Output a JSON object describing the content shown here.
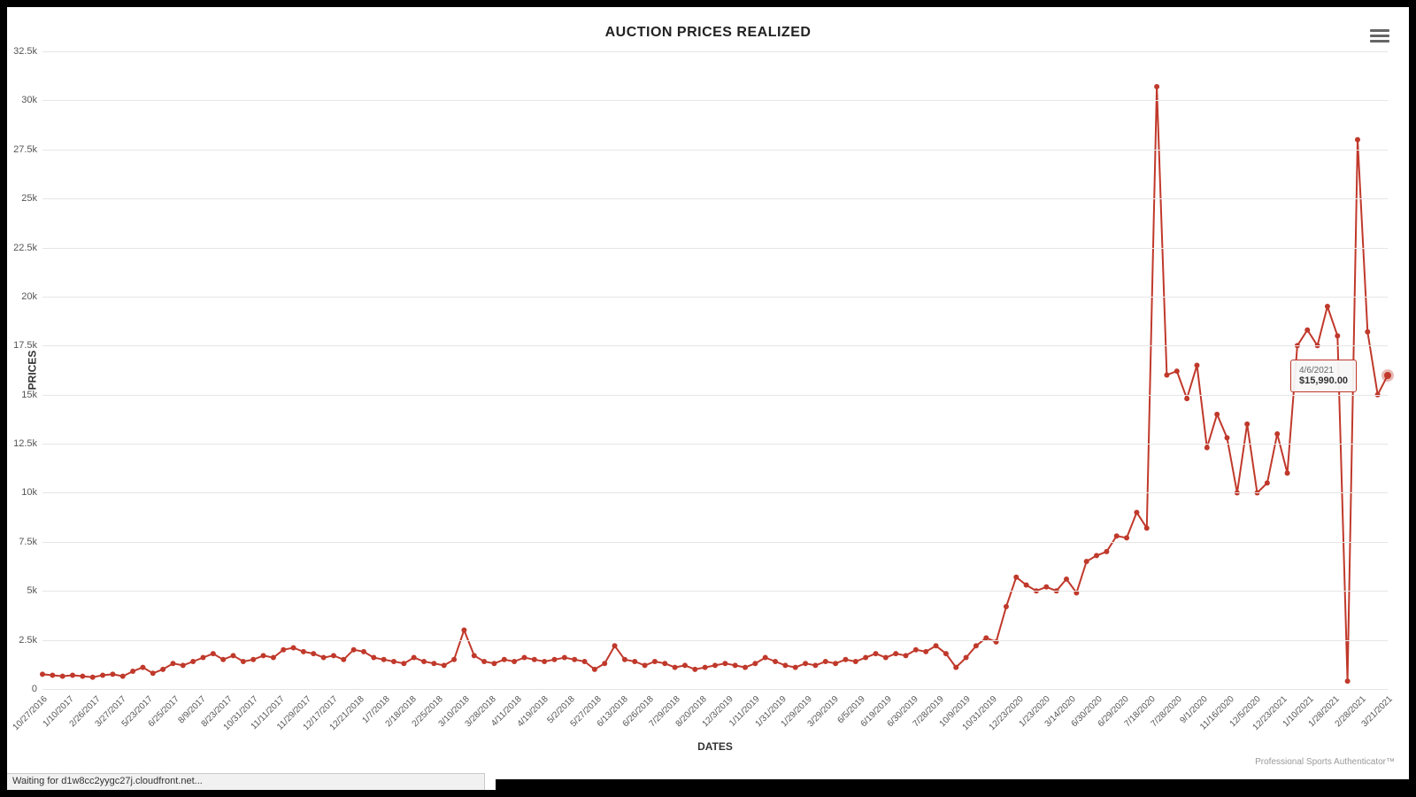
{
  "chart": {
    "type": "line",
    "title": "AUCTION PRICES REALIZED",
    "x_axis_title": "DATES",
    "y_axis_title": "PRICES",
    "line_color": "#c0392b",
    "marker_color": "#c0392b",
    "line_width": 2,
    "marker_radius": 3,
    "background_color": "#ffffff",
    "grid_color": "#e6e6e6",
    "title_fontsize": 16,
    "axis_title_fontsize": 12,
    "tick_fontsize": 11,
    "ylim": [
      0,
      32500
    ],
    "ytick_step": 2500,
    "yticks": [
      "0",
      "2.5k",
      "5k",
      "7.5k",
      "10k",
      "12.5k",
      "15k",
      "17.5k",
      "20k",
      "22.5k",
      "25k",
      "27.5k",
      "30k",
      "32.5k"
    ],
    "xticks": [
      "10/27/2016",
      "1/10/2017",
      "2/26/2017",
      "3/27/2017",
      "5/23/2017",
      "6/25/2017",
      "8/9/2017",
      "8/23/2017",
      "10/31/2017",
      "11/11/2017",
      "11/29/2017",
      "12/17/2017",
      "12/21/2018",
      "1/7/2018",
      "2/18/2018",
      "2/25/2018",
      "3/10/2018",
      "3/28/2018",
      "4/11/2018",
      "4/19/2018",
      "5/2/2018",
      "5/27/2018",
      "6/13/2018",
      "6/26/2018",
      "7/29/2018",
      "8/20/2018",
      "12/3/2019",
      "1/11/2019",
      "1/31/2019",
      "1/29/2019",
      "3/29/2019",
      "6/5/2019",
      "6/19/2019",
      "6/30/2019",
      "7/28/2019",
      "10/9/2019",
      "10/31/2019",
      "12/23/2020",
      "1/23/2020",
      "3/14/2020",
      "6/30/2020",
      "6/29/2020",
      "7/18/2020",
      "7/28/2020",
      "9/1/2020",
      "11/16/2020",
      "12/5/2020",
      "12/23/2021",
      "1/10/2021",
      "1/28/2021",
      "2/28/2021",
      "3/21/2021"
    ],
    "data": [
      {
        "x": "10/27/2016",
        "y": 750
      },
      {
        "x": "11/10/2016",
        "y": 700
      },
      {
        "x": "11/25/2016",
        "y": 650
      },
      {
        "x": "1/10/2017",
        "y": 700
      },
      {
        "x": "1/25/2017",
        "y": 650
      },
      {
        "x": "2/10/2017",
        "y": 600
      },
      {
        "x": "2/26/2017",
        "y": 700
      },
      {
        "x": "3/10/2017",
        "y": 750
      },
      {
        "x": "3/27/2017",
        "y": 650
      },
      {
        "x": "4/15/2017",
        "y": 900
      },
      {
        "x": "5/5/2017",
        "y": 1100
      },
      {
        "x": "5/23/2017",
        "y": 800
      },
      {
        "x": "6/10/2017",
        "y": 1000
      },
      {
        "x": "6/25/2017",
        "y": 1300
      },
      {
        "x": "7/10/2017",
        "y": 1200
      },
      {
        "x": "7/25/2017",
        "y": 1400
      },
      {
        "x": "8/9/2017",
        "y": 1600
      },
      {
        "x": "8/23/2017",
        "y": 1800
      },
      {
        "x": "9/10/2017",
        "y": 1500
      },
      {
        "x": "9/25/2017",
        "y": 1700
      },
      {
        "x": "10/15/2017",
        "y": 1400
      },
      {
        "x": "10/31/2017",
        "y": 1500
      },
      {
        "x": "11/11/2017",
        "y": 1700
      },
      {
        "x": "11/20/2017",
        "y": 1600
      },
      {
        "x": "11/29/2017",
        "y": 2000
      },
      {
        "x": "12/8/2017",
        "y": 2100
      },
      {
        "x": "12/17/2017",
        "y": 1900
      },
      {
        "x": "12/28/2017",
        "y": 1800
      },
      {
        "x": "1/7/2018",
        "y": 1600
      },
      {
        "x": "1/20/2018",
        "y": 1700
      },
      {
        "x": "2/5/2018",
        "y": 1500
      },
      {
        "x": "2/18/2018",
        "y": 2000
      },
      {
        "x": "2/25/2018",
        "y": 1900
      },
      {
        "x": "3/3/2018",
        "y": 1600
      },
      {
        "x": "3/10/2018",
        "y": 1500
      },
      {
        "x": "3/20/2018",
        "y": 1400
      },
      {
        "x": "3/28/2018",
        "y": 1300
      },
      {
        "x": "4/5/2018",
        "y": 1600
      },
      {
        "x": "4/11/2018",
        "y": 1400
      },
      {
        "x": "4/15/2018",
        "y": 1300
      },
      {
        "x": "4/19/2018",
        "y": 1200
      },
      {
        "x": "4/25/2018",
        "y": 1500
      },
      {
        "x": "5/2/2018",
        "y": 3000
      },
      {
        "x": "5/15/2018",
        "y": 1700
      },
      {
        "x": "5/27/2018",
        "y": 1400
      },
      {
        "x": "6/5/2018",
        "y": 1300
      },
      {
        "x": "6/13/2018",
        "y": 1500
      },
      {
        "x": "6/20/2018",
        "y": 1400
      },
      {
        "x": "6/26/2018",
        "y": 1600
      },
      {
        "x": "7/10/2018",
        "y": 1500
      },
      {
        "x": "7/20/2018",
        "y": 1400
      },
      {
        "x": "7/29/2018",
        "y": 1500
      },
      {
        "x": "8/10/2018",
        "y": 1600
      },
      {
        "x": "8/20/2018",
        "y": 1500
      },
      {
        "x": "9/5/2018",
        "y": 1400
      },
      {
        "x": "9/20/2018",
        "y": 1000
      },
      {
        "x": "10/5/2018",
        "y": 1300
      },
      {
        "x": "10/20/2018",
        "y": 2200
      },
      {
        "x": "11/5/2018",
        "y": 1500
      },
      {
        "x": "11/20/2018",
        "y": 1400
      },
      {
        "x": "12/3/2018",
        "y": 1200
      },
      {
        "x": "12/15/2018",
        "y": 1400
      },
      {
        "x": "12/21/2018",
        "y": 1300
      },
      {
        "x": "1/11/2019",
        "y": 1100
      },
      {
        "x": "1/20/2019",
        "y": 1200
      },
      {
        "x": "1/29/2019",
        "y": 1000
      },
      {
        "x": "1/31/2019",
        "y": 1100
      },
      {
        "x": "2/15/2019",
        "y": 1200
      },
      {
        "x": "3/5/2019",
        "y": 1300
      },
      {
        "x": "3/29/2019",
        "y": 1200
      },
      {
        "x": "4/15/2019",
        "y": 1100
      },
      {
        "x": "5/5/2019",
        "y": 1300
      },
      {
        "x": "5/25/2019",
        "y": 1600
      },
      {
        "x": "6/5/2019",
        "y": 1400
      },
      {
        "x": "6/19/2019",
        "y": 1200
      },
      {
        "x": "6/30/2019",
        "y": 1100
      },
      {
        "x": "7/15/2019",
        "y": 1300
      },
      {
        "x": "7/28/2019",
        "y": 1200
      },
      {
        "x": "8/15/2019",
        "y": 1400
      },
      {
        "x": "9/5/2019",
        "y": 1300
      },
      {
        "x": "9/25/2019",
        "y": 1500
      },
      {
        "x": "10/9/2019",
        "y": 1400
      },
      {
        "x": "10/20/2019",
        "y": 1600
      },
      {
        "x": "10/31/2019",
        "y": 1800
      },
      {
        "x": "11/15/2019",
        "y": 1600
      },
      {
        "x": "12/5/2019",
        "y": 1800
      },
      {
        "x": "12/23/2019",
        "y": 1700
      },
      {
        "x": "1/10/2020",
        "y": 2000
      },
      {
        "x": "1/23/2020",
        "y": 1900
      },
      {
        "x": "2/10/2020",
        "y": 2200
      },
      {
        "x": "2/25/2020",
        "y": 1800
      },
      {
        "x": "3/14/2020",
        "y": 1100
      },
      {
        "x": "4/5/2020",
        "y": 1600
      },
      {
        "x": "5/5/2020",
        "y": 2200
      },
      {
        "x": "6/5/2020",
        "y": 2600
      },
      {
        "x": "6/29/2020",
        "y": 2400
      },
      {
        "x": "6/30/2020",
        "y": 4200
      },
      {
        "x": "7/10/2020",
        "y": 5700
      },
      {
        "x": "7/18/2020",
        "y": 5300
      },
      {
        "x": "7/25/2020",
        "y": 5000
      },
      {
        "x": "7/28/2020",
        "y": 5200
      },
      {
        "x": "8/10/2020",
        "y": 5000
      },
      {
        "x": "8/20/2020",
        "y": 5600
      },
      {
        "x": "9/1/2020",
        "y": 4900
      },
      {
        "x": "9/15/2020",
        "y": 6500
      },
      {
        "x": "10/1/2020",
        "y": 6800
      },
      {
        "x": "10/20/2020",
        "y": 7000
      },
      {
        "x": "11/5/2020",
        "y": 7800
      },
      {
        "x": "11/16/2020",
        "y": 7700
      },
      {
        "x": "11/25/2020",
        "y": 9000
      },
      {
        "x": "12/1/2020",
        "y": 8200
      },
      {
        "x": "12/5/2020",
        "y": 30700
      },
      {
        "x": "12/10/2020",
        "y": 16000
      },
      {
        "x": "12/15/2020",
        "y": 16200
      },
      {
        "x": "12/20/2020",
        "y": 14800
      },
      {
        "x": "12/23/2020",
        "y": 16500
      },
      {
        "x": "12/28/2020",
        "y": 12300
      },
      {
        "x": "1/3/2021",
        "y": 14000
      },
      {
        "x": "1/8/2021",
        "y": 12800
      },
      {
        "x": "1/10/2021",
        "y": 10000
      },
      {
        "x": "1/15/2021",
        "y": 13500
      },
      {
        "x": "1/20/2021",
        "y": 10000
      },
      {
        "x": "1/25/2021",
        "y": 10500
      },
      {
        "x": "1/28/2021",
        "y": 13000
      },
      {
        "x": "2/5/2021",
        "y": 11000
      },
      {
        "x": "2/15/2021",
        "y": 17500
      },
      {
        "x": "2/22/2021",
        "y": 18300
      },
      {
        "x": "2/28/2021",
        "y": 17500
      },
      {
        "x": "3/5/2021",
        "y": 19500
      },
      {
        "x": "3/10/2021",
        "y": 18000
      },
      {
        "x": "3/15/2021",
        "y": 400
      },
      {
        "x": "3/21/2021",
        "y": 28000
      },
      {
        "x": "3/28/2021",
        "y": 18200
      },
      {
        "x": "4/2/2021",
        "y": 15000
      },
      {
        "x": "4/6/2021",
        "y": 15990
      }
    ],
    "tooltip": {
      "date": "4/6/2021",
      "value": "$15,990.00"
    },
    "credit": "Professional Sports Authenticator™"
  },
  "browser": {
    "status": "Waiting for d1w8cc2yygc27j.cloudfront.net..."
  }
}
